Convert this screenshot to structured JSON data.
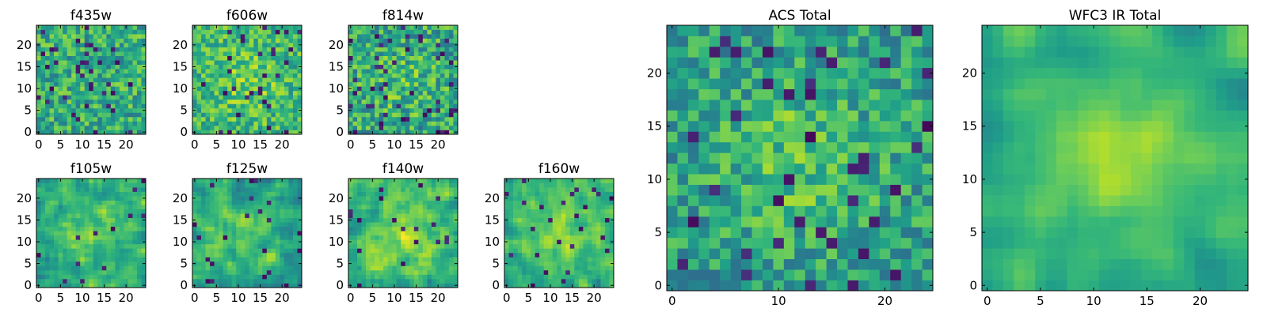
{
  "chart_data": {
    "type": "heatmap",
    "colormap": "viridis",
    "grid_size": 25,
    "value_range": [
      0,
      1
    ],
    "panels": [
      {
        "id": "f435w",
        "title": "f435w",
        "size": "small",
        "xticks": [
          "0",
          "5",
          "10",
          "15",
          "20"
        ],
        "yticks": [
          "0",
          "5",
          "10",
          "15",
          "20"
        ],
        "xlim": [
          0,
          24
        ],
        "ylim": [
          0,
          24
        ],
        "seed": 11,
        "smooth": 0,
        "mean": 0.62,
        "amp": 0.22,
        "blob": 0.0,
        "dark_spots": 0.06
      },
      {
        "id": "f606w",
        "title": "f606w",
        "size": "small",
        "xticks": [
          "0",
          "5",
          "10",
          "15",
          "20"
        ],
        "yticks": [
          "0",
          "5",
          "10",
          "15",
          "20"
        ],
        "xlim": [
          0,
          24
        ],
        "ylim": [
          0,
          24
        ],
        "seed": 23,
        "smooth": 0,
        "mean": 0.66,
        "amp": 0.2,
        "blob": 0.12,
        "dark_spots": 0.04
      },
      {
        "id": "f814w",
        "title": "f814w",
        "size": "small",
        "xticks": [
          "0",
          "5",
          "10",
          "15",
          "20"
        ],
        "yticks": [
          "0",
          "5",
          "10",
          "15",
          "20"
        ],
        "xlim": [
          0,
          24
        ],
        "ylim": [
          0,
          24
        ],
        "seed": 37,
        "smooth": 0,
        "mean": 0.6,
        "amp": 0.24,
        "blob": 0.08,
        "dark_spots": 0.06
      },
      {
        "id": "f105w",
        "title": "f105w",
        "size": "small",
        "xticks": [
          "0",
          "5",
          "10",
          "15",
          "20"
        ],
        "yticks": [
          "0",
          "5",
          "10",
          "15",
          "20"
        ],
        "xlim": [
          0,
          24
        ],
        "ylim": [
          0,
          24
        ],
        "seed": 41,
        "smooth": 1,
        "mean": 0.62,
        "amp": 0.22,
        "blob": 0.18,
        "dark_spots": 0.02
      },
      {
        "id": "f125w",
        "title": "f125w",
        "size": "small",
        "xticks": [
          "0",
          "5",
          "10",
          "15",
          "20"
        ],
        "yticks": [
          "0",
          "5",
          "10",
          "15",
          "20"
        ],
        "xlim": [
          0,
          24
        ],
        "ylim": [
          0,
          24
        ],
        "seed": 53,
        "smooth": 1,
        "mean": 0.58,
        "amp": 0.24,
        "blob": 0.12,
        "dark_spots": 0.04
      },
      {
        "id": "f140w",
        "title": "f140w",
        "size": "small",
        "xticks": [
          "0",
          "5",
          "10",
          "15",
          "20"
        ],
        "yticks": [
          "0",
          "5",
          "10",
          "15",
          "20"
        ],
        "xlim": [
          0,
          24
        ],
        "ylim": [
          0,
          24
        ],
        "seed": 67,
        "smooth": 1,
        "mean": 0.64,
        "amp": 0.22,
        "blob": 0.18,
        "dark_spots": 0.03
      },
      {
        "id": "f160w",
        "title": "f160w",
        "size": "small",
        "xticks": [
          "0",
          "5",
          "10",
          "15",
          "20"
        ],
        "yticks": [
          "0",
          "5",
          "10",
          "15",
          "20"
        ],
        "xlim": [
          0,
          24
        ],
        "ylim": [
          0,
          24
        ],
        "seed": 79,
        "smooth": 1,
        "mean": 0.62,
        "amp": 0.2,
        "blob": 0.2,
        "dark_spots": 0.03
      },
      {
        "id": "acs-total",
        "title": "ACS Total",
        "size": "large",
        "xticks": [
          "0",
          "10",
          "20"
        ],
        "yticks": [
          "0",
          "5",
          "10",
          "15",
          "20"
        ],
        "xlim": [
          0,
          24
        ],
        "ylim": [
          0,
          24
        ],
        "seed": 97,
        "smooth": 0,
        "mean": 0.55,
        "amp": 0.2,
        "blob": 0.16,
        "dark_spots": 0.05
      },
      {
        "id": "wfc3-ir-total",
        "title": "WFC3 IR Total",
        "size": "large",
        "xticks": [
          "0",
          "5",
          "10",
          "15",
          "20"
        ],
        "yticks": [
          "0",
          "5",
          "10",
          "15",
          "20"
        ],
        "xlim": [
          0,
          24
        ],
        "ylim": [
          0,
          24
        ],
        "seed": 113,
        "smooth": 2,
        "mean": 0.62,
        "amp": 0.16,
        "blob": 0.22,
        "dark_spots": 0.0
      }
    ]
  }
}
